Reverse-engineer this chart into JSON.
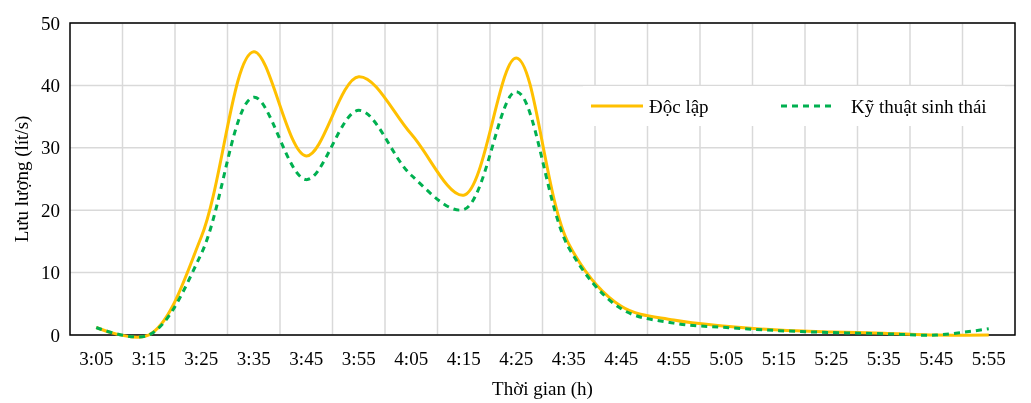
{
  "chart_data": {
    "type": "line",
    "xlabel": "Thời gian (h)",
    "ylabel": "Lưu lượng (lít/s)",
    "categories": [
      "3:05",
      "3:15",
      "3:25",
      "3:35",
      "3:45",
      "3:55",
      "4:05",
      "4:15",
      "4:25",
      "4:35",
      "4:45",
      "4:55",
      "5:05",
      "5:15",
      "5:25",
      "5:35",
      "5:45",
      "5:55"
    ],
    "series": [
      {
        "name": "Độc lập",
        "color": "#ffc000",
        "line_style": "solid",
        "values": [
          1.2,
          0,
          15.7,
          45.4,
          28.7,
          41.4,
          32.2,
          22.4,
          44.4,
          14.6,
          4.6,
          2.4,
          1.4,
          0.8,
          0.5,
          0.3,
          0,
          0
        ]
      },
      {
        "name": "Kỹ thuật sinh thái",
        "color": "#00b050",
        "line_style": "dashed",
        "values": [
          1.2,
          0,
          13,
          38.1,
          24.9,
          36,
          25.6,
          20.1,
          39,
          14,
          4.2,
          1.9,
          1.2,
          0.7,
          0.4,
          0.2,
          0,
          1
        ]
      }
    ],
    "ylim": [
      0,
      50
    ],
    "yticks": [
      0,
      10,
      20,
      30,
      40,
      50
    ],
    "grid": true,
    "legend": "top right"
  }
}
